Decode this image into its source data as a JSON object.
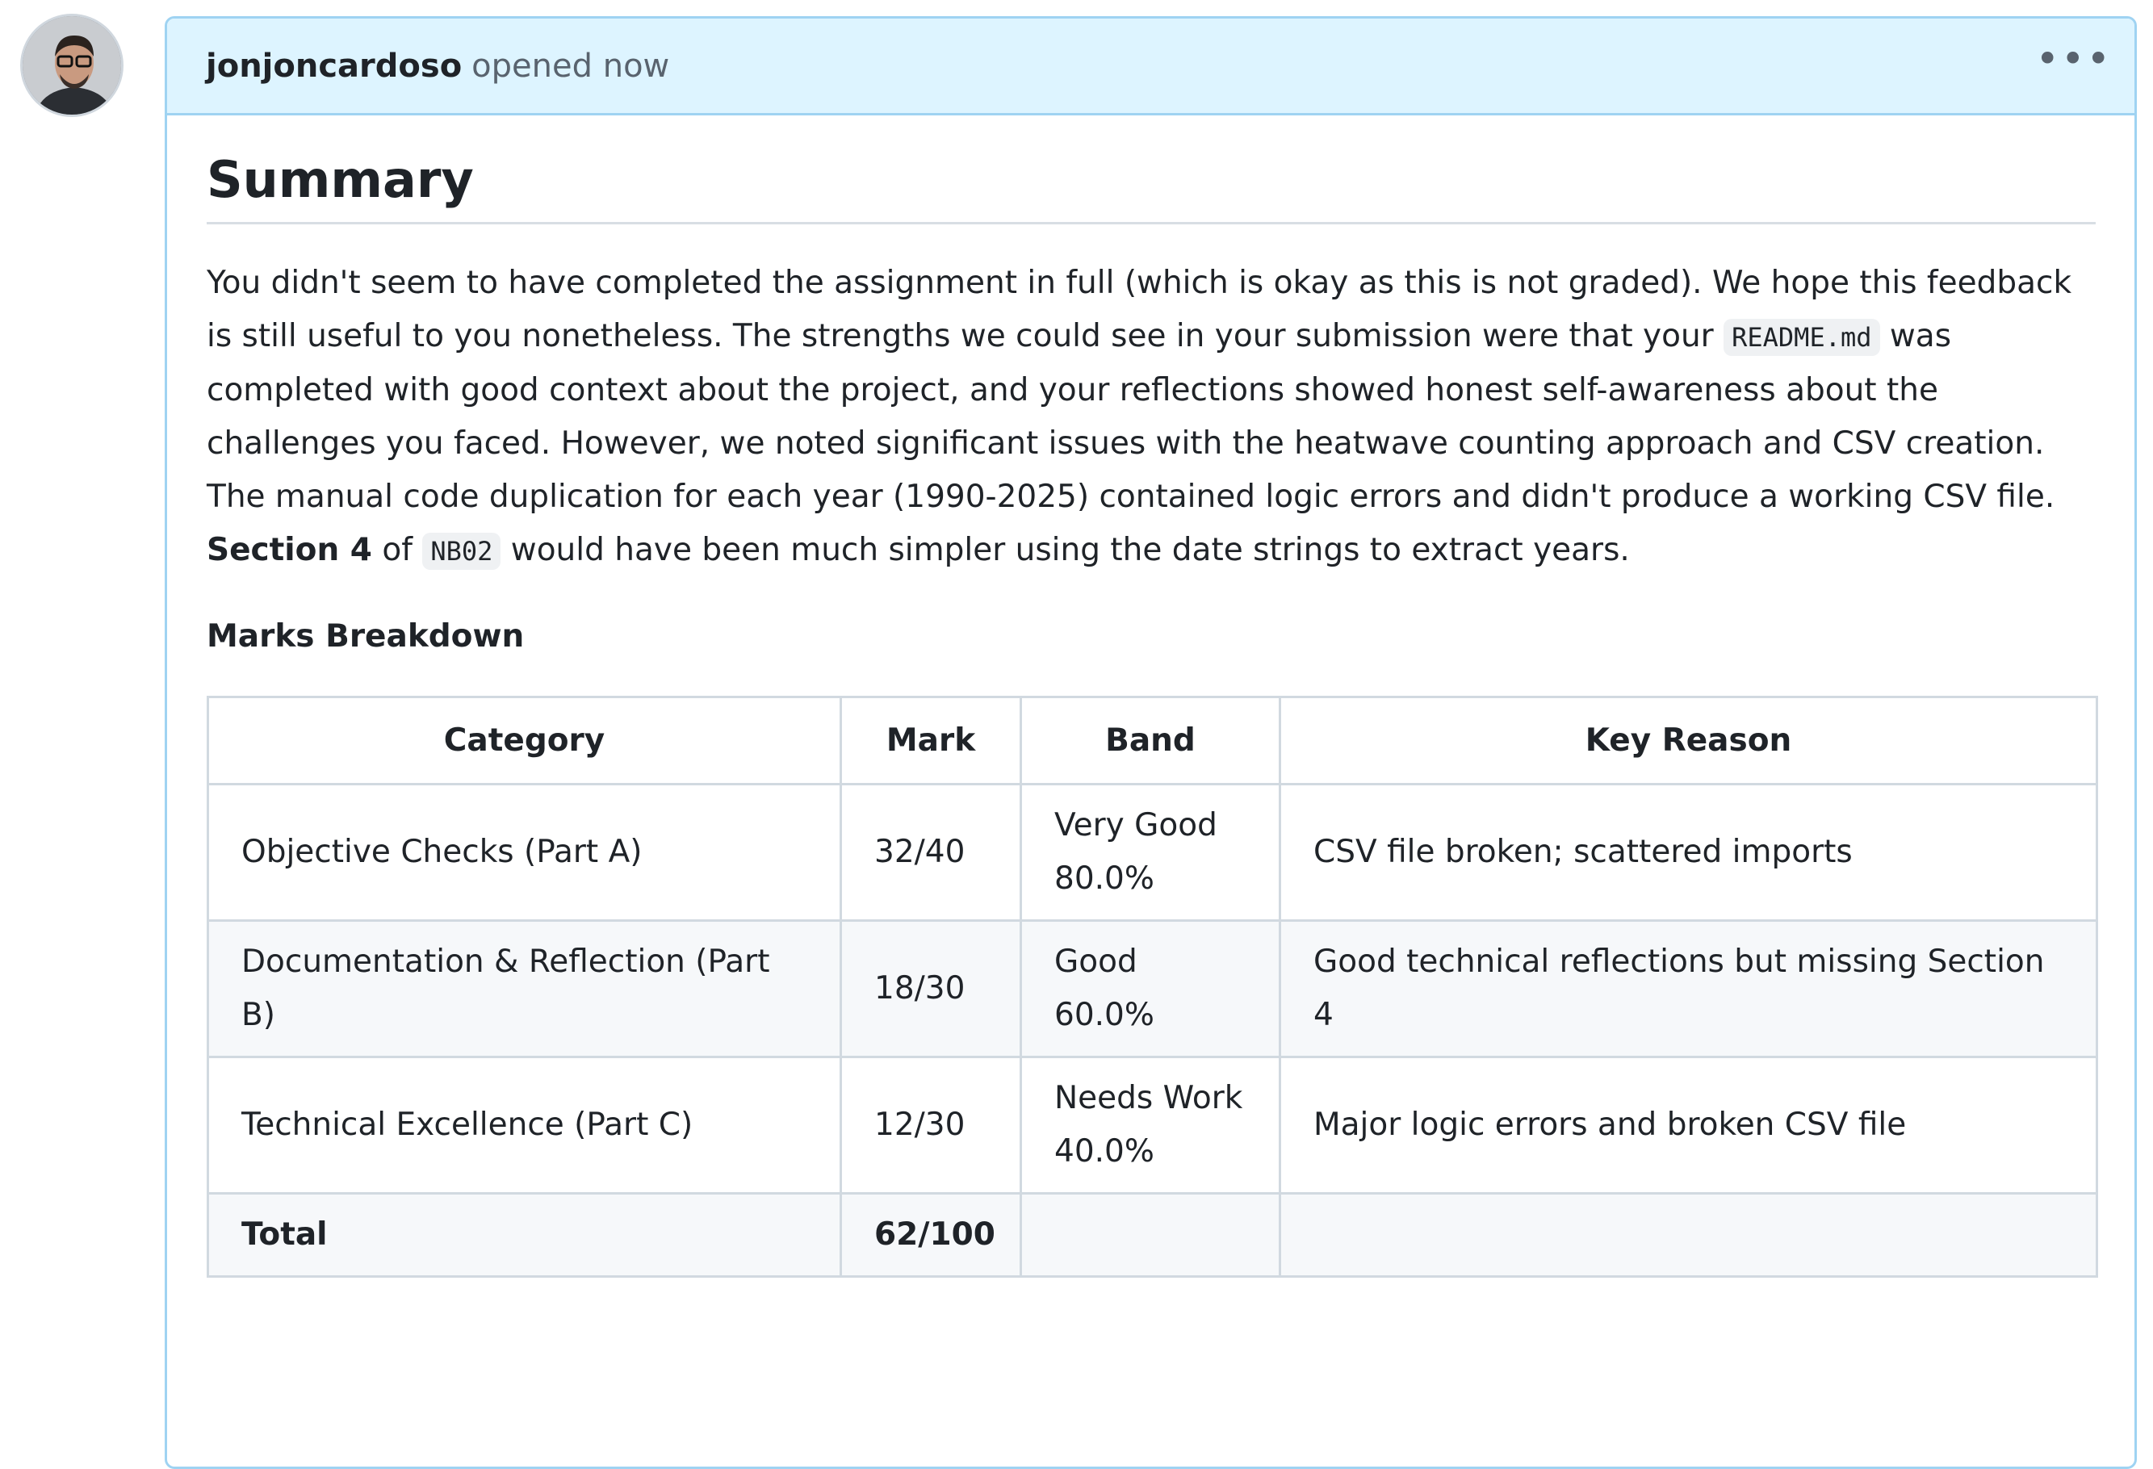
{
  "header": {
    "author": "jonjoncardoso",
    "action": "opened now"
  },
  "body": {
    "heading": "Summary",
    "paragraph": {
      "part1": "You didn't seem to have completed the assignment in full (which is okay as this is not graded). We hope this feedback is still useful to you nonetheless. The strengths we could see in your submission were that your ",
      "code1": "README.md",
      "part2": " was completed with good context about the project, and your reflections showed honest self-awareness about the challenges you faced. However, we noted significant issues with the heatwave counting approach and CSV creation. The manual code duplication for each year (1990-2025) contained logic errors and didn't produce a working CSV file. ",
      "bold1": "Section 4",
      "part3": " of ",
      "code2": "NB02",
      "part4": " would have been much simpler using the date strings to extract years."
    },
    "subheading": "Marks Breakdown"
  },
  "table": {
    "columns": [
      "Category",
      "Mark",
      "Band",
      "Key Reason"
    ],
    "rows": [
      [
        "Objective Checks (Part A)",
        "32/40",
        "Very Good 80.0%",
        "CSV file broken; scattered imports"
      ],
      [
        "Documentation & Reflection (Part B)",
        "18/30",
        "Good 60.0%",
        "Good technical reflections but missing Section 4"
      ],
      [
        "Technical Excellence (Part C)",
        "12/30",
        "Needs Work 40.0%",
        "Major logic errors and broken CSV file"
      ],
      [
        "Total",
        "62/100",
        null,
        null
      ]
    ]
  }
}
